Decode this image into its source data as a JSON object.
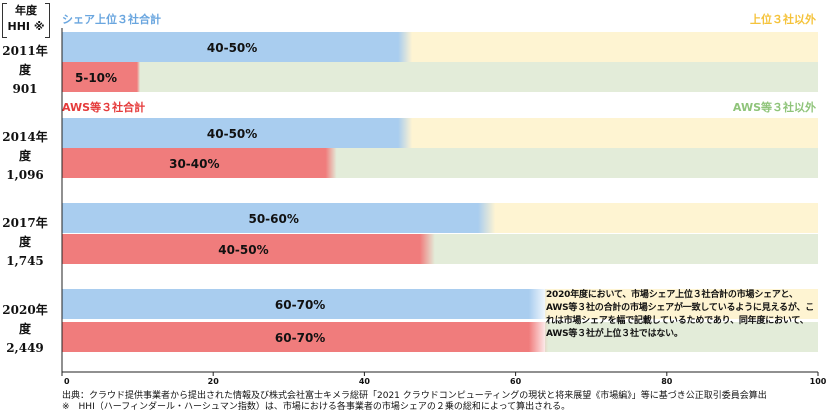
{
  "header": {
    "line1": "年度",
    "line2": "HHI ※"
  },
  "legend": {
    "top3_share": "シェア上位３社合計",
    "non_top3": "上位３社以外",
    "aws3_share": "AWS等３社合計",
    "non_aws3": "AWS等３社以外"
  },
  "colors": {
    "top3": "#a9cdef",
    "top3_dark": "#7fb2e2",
    "non_top3_fill": "#fef4d2",
    "non_top3_text": "#f5c33b",
    "aws3": "#f07c7c",
    "aws3_dark": "#e95a5a",
    "non_aws3_fill": "#e3ecd9",
    "non_aws3_text": "#8fc47a",
    "top3_text": "#6aa6df",
    "aws3_text": "#e53b3b"
  },
  "chart_data": {
    "type": "bar",
    "orientation": "horizontal",
    "xlim": [
      0,
      100
    ],
    "xticks": [
      "0",
      "20",
      "40",
      "60",
      "80",
      "100"
    ],
    "years": [
      {
        "year": "2011年度",
        "hhi": "901",
        "top3": {
          "label": "40-50%",
          "value": 45
        },
        "aws3": {
          "label": "5-10%",
          "value": 9
        }
      },
      {
        "year": "2014年度",
        "hhi": "1,096",
        "top3": {
          "label": "40-50%",
          "value": 45
        },
        "aws3": {
          "label": "30-40%",
          "value": 35
        }
      },
      {
        "year": "2017年度",
        "hhi": "1,745",
        "top3": {
          "label": "50-60%",
          "value": 56
        },
        "aws3": {
          "label": "40-50%",
          "value": 48
        }
      },
      {
        "year": "2020年度",
        "hhi": "2,449",
        "top3": {
          "label": "60-70%",
          "value": 63
        },
        "aws3": {
          "label": "60-70%",
          "value": 63
        }
      }
    ]
  },
  "note": "2020年度において、市場シェア上位３社合計の市場シェアと、AWS等３社の合計の市場シェアが一致しているように見えるが、これは市場シェアを幅で記載しているためであり、同年度において、AWS等３社が上位３社ではない。",
  "footer": {
    "source": "出典：クラウド提供事業者から提出された情報及び株式会社富士キメラ総研「2021 クラウドコンピューティングの現状と将来展望《市場編》」等に基づき公正取引委員会算出",
    "hhi_note": "※　HHI（ハーフィンダール・ハーシュマン指数）は、市場における各事業者の市場シェアの２乗の総和によって算出される。"
  }
}
